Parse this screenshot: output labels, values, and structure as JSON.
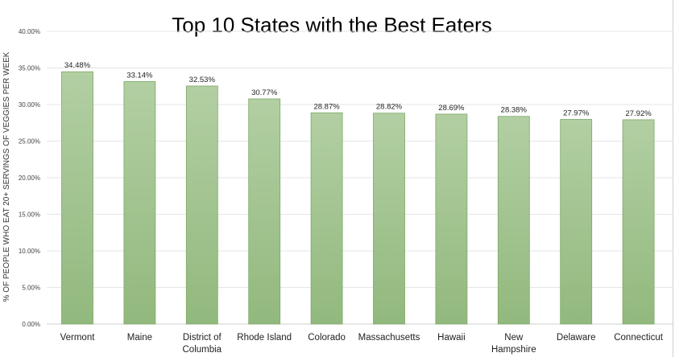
{
  "chart_data": {
    "type": "bar",
    "title": "Top 10 States with the Best Eaters",
    "xlabel": "",
    "ylabel": "% OF PEOPLE WHO EAT 20+ SERVINGS OF VEGGIES PER WEEK",
    "categories": [
      [
        "Vermont"
      ],
      [
        "Maine"
      ],
      [
        "District of",
        "Columbia"
      ],
      [
        "Rhode Island"
      ],
      [
        "Colorado"
      ],
      [
        "Massachusetts"
      ],
      [
        "Hawaii"
      ],
      [
        "New",
        "Hampshire"
      ],
      [
        "Delaware"
      ],
      [
        "Connecticut"
      ]
    ],
    "values": [
      34.48,
      33.14,
      32.53,
      30.77,
      28.87,
      28.82,
      28.69,
      28.38,
      27.97,
      27.92
    ],
    "data_labels": [
      "34.48%",
      "33.14%",
      "32.53%",
      "30.77%",
      "28.87%",
      "28.82%",
      "28.69%",
      "28.38%",
      "27.97%",
      "27.92%"
    ],
    "ylim": [
      0,
      40
    ],
    "yticks": [
      0,
      5,
      10,
      15,
      20,
      25,
      30,
      35,
      40
    ],
    "ytick_labels": [
      "0.00%",
      "5.00%",
      "10.00%",
      "15.00%",
      "20.00%",
      "25.00%",
      "30.00%",
      "35.00%",
      "40.00%"
    ],
    "grid": true,
    "legend": "none",
    "colors": {
      "bar_top": "#b2cfa3",
      "bar_bottom": "#92b97d",
      "bar_edge": "#7da865",
      "grid": "#e6e6e6"
    }
  }
}
